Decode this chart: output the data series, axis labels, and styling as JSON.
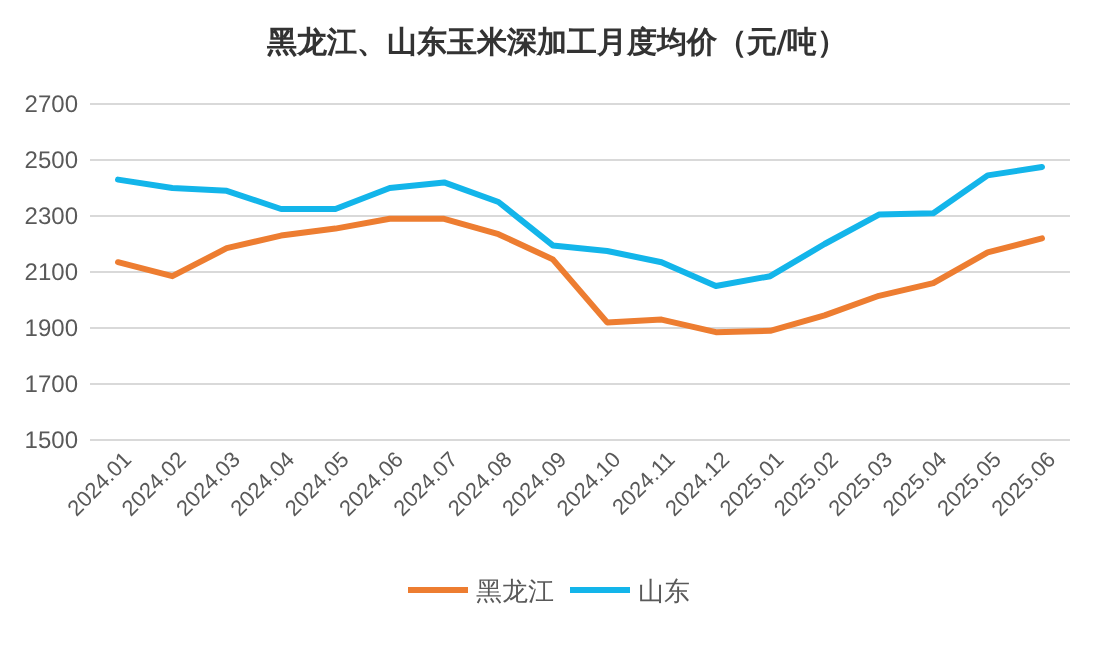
{
  "chart_data": {
    "type": "line",
    "title": "黑龙江、山东玉米深加工月度均价（元/吨）",
    "categories": [
      "2024.01",
      "2024.02",
      "2024.03",
      "2024.04",
      "2024.05",
      "2024.06",
      "2024.07",
      "2024.08",
      "2024.09",
      "2024.10",
      "2024.11",
      "2024.12",
      "2025.01",
      "2025.02",
      "2025.03",
      "2025.04",
      "2025.05",
      "2025.06"
    ],
    "series": [
      {
        "name": "黑龙江",
        "color": "#ed7d31",
        "values": [
          2135,
          2085,
          2185,
          2230,
          2255,
          2290,
          2290,
          2235,
          2145,
          1920,
          1930,
          1885,
          1890,
          1945,
          2015,
          2060,
          2170,
          2220
        ]
      },
      {
        "name": "山东",
        "color": "#13b5ea",
        "values": [
          2430,
          2400,
          2390,
          2325,
          2325,
          2400,
          2420,
          2350,
          2195,
          2175,
          2135,
          2050,
          2085,
          2200,
          2305,
          2310,
          2445,
          2475
        ]
      }
    ],
    "ylim": [
      1500,
      2700
    ],
    "yticks": [
      1500,
      1700,
      1900,
      2100,
      2300,
      2500,
      2700
    ],
    "grid": "y",
    "legend": "bottom",
    "marker": "none",
    "line_style": "solid"
  }
}
